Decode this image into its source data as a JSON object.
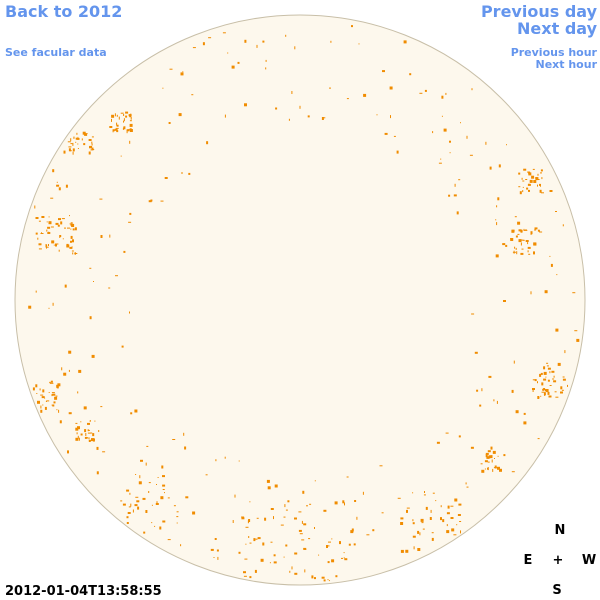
{
  "nav": {
    "back": "Back to 2012",
    "facular": "See facular data",
    "previous_day": "Previous day",
    "next_day": "Next day",
    "previous_hour": "Previous hour",
    "next_hour": "Next hour"
  },
  "timestamp": "2012-01-04T13:58:55",
  "compass": {
    "north": "N",
    "east": "E",
    "center": "+",
    "west": "W",
    "south": "S"
  }
}
